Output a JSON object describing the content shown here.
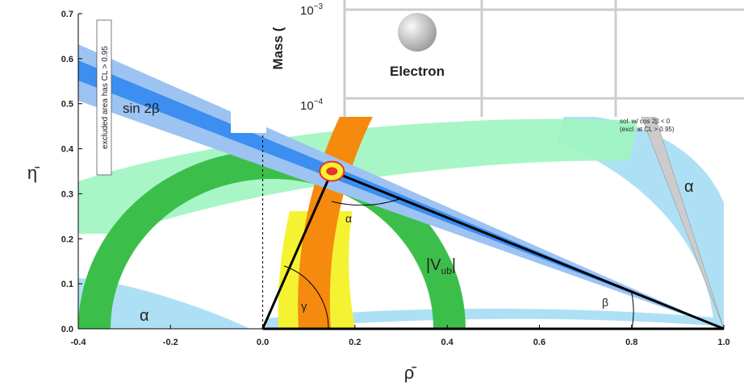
{
  "chart_data": {
    "type": "unitarity-triangle",
    "xlabel": "ρ̄",
    "ylabel": "η̄",
    "xlim": [
      -0.4,
      1.0
    ],
    "ylim": [
      0.0,
      0.7
    ],
    "xticks": [
      -0.4,
      -0.2,
      {
        "value": 0,
        "label": "0.0"
      },
      0.2,
      0.4,
      0.6,
      0.8,
      {
        "value": 1,
        "label": "1.0"
      }
    ],
    "yticks": [
      {
        "value": 0,
        "label": "0.0"
      },
      0.1,
      0.2,
      0.3,
      0.4,
      0.5,
      0.6,
      0.7
    ],
    "triangle": {
      "x": [
        0,
        1,
        0.15,
        0
      ],
      "y": [
        0,
        0,
        0.35,
        0
      ],
      "color": "#000000"
    },
    "apex": {
      "x": 0.15,
      "y": 0.35,
      "color": "#e8322a"
    },
    "annotations": {
      "sin2beta": "sin 2β",
      "excluded": "excluded area has CL > 0.95",
      "alpha_right": "α",
      "alpha_left": "α",
      "alpha_angle": "α",
      "gamma_angle": "γ",
      "beta_angle": "β",
      "vub": [
        "|V",
        "ub",
        "|"
      ],
      "sol_line1": "sol. w/ cos 2β < 0",
      "sol_line2": "(excl. at CL > 0.95)"
    }
  },
  "overlay": {
    "axis_label": "Mass (",
    "tick_1": [
      "10",
      "−3"
    ],
    "tick_2": [
      "10",
      "−4"
    ],
    "particle": "Electron"
  }
}
